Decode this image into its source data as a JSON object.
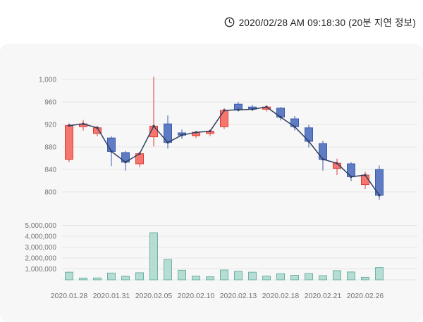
{
  "header": {
    "timestamp": "2020/02/28 AM 09:18:30 (20분 지연 정보)"
  },
  "chart_data": {
    "type": "candlestick_with_volume",
    "title": "",
    "price_axis": {
      "ticks": [
        1000,
        960,
        920,
        880,
        840,
        800
      ],
      "tick_labels": [
        "1,000",
        "960",
        "920",
        "880",
        "840",
        "800"
      ],
      "min": 775,
      "max": 1035
    },
    "volume_axis": {
      "ticks": [
        5000000,
        4000000,
        3000000,
        2000000,
        1000000
      ],
      "tick_labels": [
        "5,000,000",
        "4,000,000",
        "3,000,000",
        "2,000,000",
        "1,000,000"
      ],
      "min": 0,
      "max": 6000000
    },
    "x_tick_labels": [
      "2020.01.28",
      "2020.01.31",
      "2020.02.05",
      "2020.02.10",
      "2020.02.13",
      "2020.02.18",
      "2020.02.21",
      "2020.02.26"
    ],
    "x_tick_indices": [
      0,
      3,
      6,
      9,
      12,
      15,
      18,
      21
    ],
    "legend": [],
    "grid": true,
    "candles": [
      {
        "date": "2020.01.28",
        "open": 858,
        "high": 922,
        "low": 853,
        "close": 918,
        "volume": 700000
      },
      {
        "date": "2020.01.29",
        "open": 916,
        "high": 928,
        "low": 909,
        "close": 921,
        "volume": 160000
      },
      {
        "date": "2020.01.30",
        "open": 904,
        "high": 917,
        "low": 899,
        "close": 914,
        "volume": 170000
      },
      {
        "date": "2020.01.31",
        "open": 896,
        "high": 899,
        "low": 846,
        "close": 872,
        "volume": 620000
      },
      {
        "date": "2020.02.03",
        "open": 870,
        "high": 873,
        "low": 838,
        "close": 853,
        "volume": 320000
      },
      {
        "date": "2020.02.04",
        "open": 850,
        "high": 871,
        "low": 844,
        "close": 868,
        "volume": 650000
      },
      {
        "date": "2020.02.05",
        "open": 898,
        "high": 1005,
        "low": 881,
        "close": 917,
        "volume": 4320000
      },
      {
        "date": "2020.02.06",
        "open": 921,
        "high": 936,
        "low": 877,
        "close": 888,
        "volume": 1860000
      },
      {
        "date": "2020.02.07",
        "open": 905,
        "high": 911,
        "low": 894,
        "close": 901,
        "volume": 880000
      },
      {
        "date": "2020.02.10",
        "open": 900,
        "high": 908,
        "low": 896,
        "close": 906,
        "volume": 330000
      },
      {
        "date": "2020.02.11",
        "open": 904,
        "high": 911,
        "low": 899,
        "close": 908,
        "volume": 280000
      },
      {
        "date": "2020.02.12",
        "open": 916,
        "high": 949,
        "low": 912,
        "close": 945,
        "volume": 900000
      },
      {
        "date": "2020.02.13",
        "open": 956,
        "high": 960,
        "low": 943,
        "close": 946,
        "volume": 780000
      },
      {
        "date": "2020.02.14",
        "open": 951,
        "high": 955,
        "low": 944,
        "close": 947,
        "volume": 700000
      },
      {
        "date": "2020.02.17",
        "open": 947,
        "high": 954,
        "low": 943,
        "close": 951,
        "volume": 340000
      },
      {
        "date": "2020.02.18",
        "open": 949,
        "high": 951,
        "low": 927,
        "close": 933,
        "volume": 560000
      },
      {
        "date": "2020.02.19",
        "open": 930,
        "high": 935,
        "low": 909,
        "close": 916,
        "volume": 420000
      },
      {
        "date": "2020.02.20",
        "open": 914,
        "high": 919,
        "low": 879,
        "close": 890,
        "volume": 580000
      },
      {
        "date": "2020.02.21",
        "open": 886,
        "high": 891,
        "low": 838,
        "close": 858,
        "volume": 380000
      },
      {
        "date": "2020.02.24",
        "open": 842,
        "high": 859,
        "low": 830,
        "close": 851,
        "volume": 840000
      },
      {
        "date": "2020.02.25",
        "open": 850,
        "high": 853,
        "low": 819,
        "close": 827,
        "volume": 720000
      },
      {
        "date": "2020.02.26",
        "open": 813,
        "high": 836,
        "low": 805,
        "close": 830,
        "volume": 230000
      },
      {
        "date": "2020.02.27",
        "open": 840,
        "high": 847,
        "low": 786,
        "close": 794,
        "volume": 1120000
      }
    ],
    "colors": {
      "up_fill": "#f5766f",
      "up_stroke": "#dd3c34",
      "down_fill": "#5e7bc4",
      "down_stroke": "#3c5cae",
      "line": "#2f3f5f",
      "volume_fill": "#b5ddd4",
      "volume_stroke": "#6cb2a4",
      "grid": "#e4e4e4",
      "axis_text": "#737373",
      "panel_bg": "#f7f7f7"
    }
  }
}
